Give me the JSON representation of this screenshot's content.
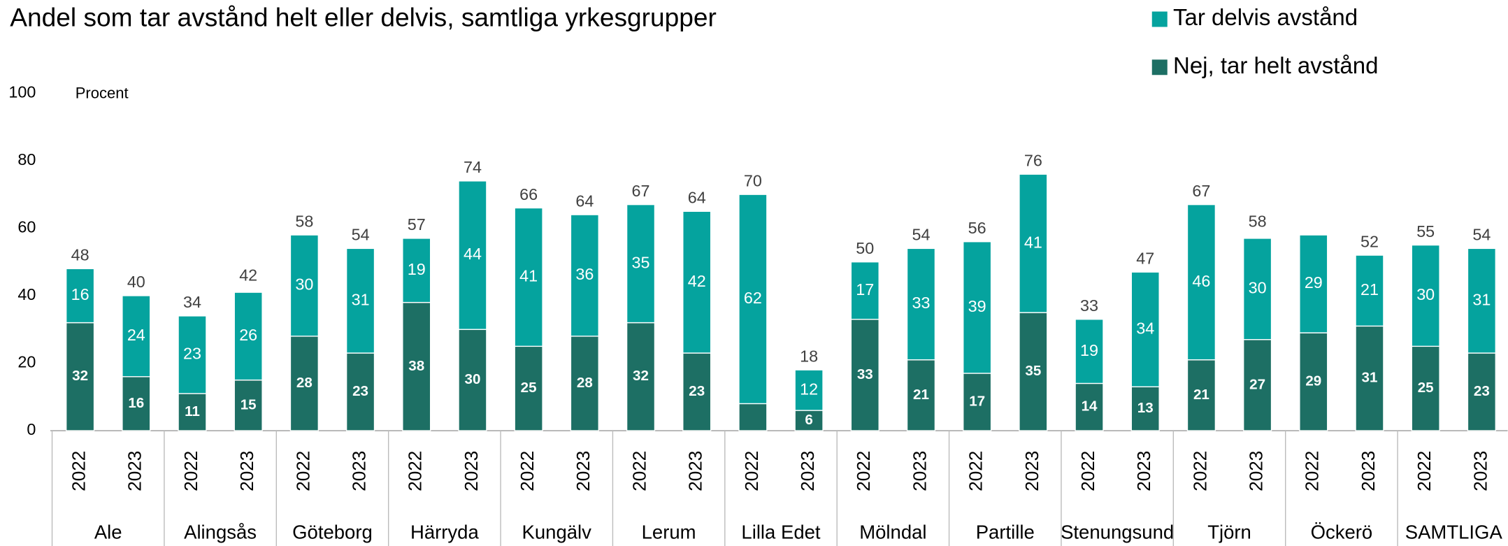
{
  "chart_data": {
    "type": "stacked_bar",
    "title": "Andel som tar avstånd helt eller delvis, samtliga yrkesgrupper",
    "y_label": "Procent",
    "categories": [
      "2022",
      "2023",
      "2022",
      "2023",
      "2022",
      "2023",
      "2022",
      "2023",
      "2022",
      "2023",
      "2022",
      "2023",
      "2022",
      "2023",
      "2022",
      "2023",
      "2022",
      "2023",
      "2022",
      "2023",
      "2022",
      "2023",
      "2022",
      "2023",
      "2022",
      "2023"
    ],
    "groups": [
      "Ale",
      "Alingsås",
      "Göteborg",
      "Härryda",
      "Kungälv",
      "Lerum",
      "Lilla Edet",
      "Mölndal",
      "Partille",
      "Stenungsund",
      "Tjörn",
      "Öckerö",
      "SAMTLIGA"
    ],
    "series": [
      {
        "name": "Nej, tar helt avstånd",
        "color": "#1d6f64",
        "values": [
          32,
          16,
          11,
          15,
          28,
          23,
          38,
          30,
          25,
          28,
          32,
          23,
          8,
          6,
          33,
          21,
          17,
          35,
          14,
          13,
          21,
          27,
          29,
          31,
          25,
          23
        ],
        "value_labels": [
          "32",
          "16",
          "11",
          "15",
          "28",
          "23",
          "38",
          "30",
          "25",
          "28",
          "32",
          "23",
          null,
          "6",
          "33",
          "21",
          "17",
          "35",
          "14",
          "13",
          "21",
          "27",
          "29",
          "31",
          "25",
          "23"
        ]
      },
      {
        "name": "Tar delvis avstånd",
        "color": "#05a39e",
        "values": [
          16,
          24,
          23,
          26,
          30,
          31,
          19,
          44,
          41,
          36,
          35,
          42,
          62,
          12,
          17,
          33,
          39,
          41,
          19,
          34,
          46,
          30,
          29,
          21,
          30,
          31
        ]
      }
    ],
    "totals": [
      48,
      40,
      34,
      42,
      58,
      54,
      57,
      74,
      66,
      64,
      67,
      64,
      70,
      18,
      50,
      54,
      56,
      76,
      33,
      47,
      67,
      58,
      null,
      52,
      55,
      54
    ],
    "ylim": [
      0,
      100
    ],
    "yticks": [
      0,
      20,
      40,
      60,
      80,
      100
    ]
  }
}
